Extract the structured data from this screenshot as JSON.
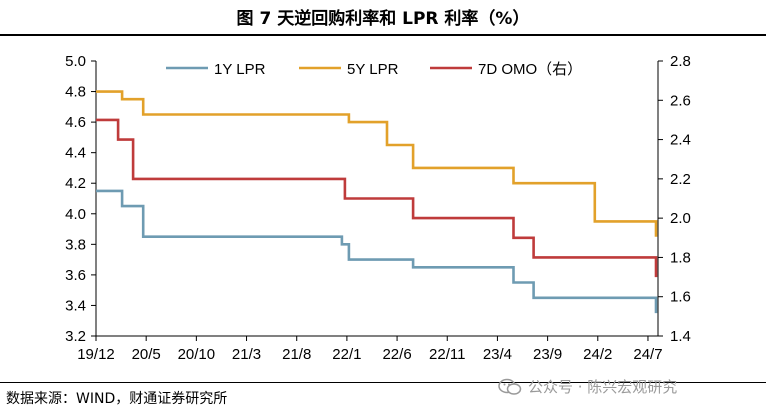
{
  "figure": {
    "title": "图 7 天逆回购利率和 LPR 利率（%）",
    "source": "数据来源：WIND，财通证券研究所",
    "watermark": "公众号 · 陈兴宏观研究",
    "watermark_icon": "wechat-icon"
  },
  "colors": {
    "lpr1y": "#6e9bb2",
    "lpr5y": "#e2a12a",
    "omo7d": "#bf3b3b",
    "axis": "#000000"
  },
  "chart_data": {
    "type": "line",
    "title": "图 7 天逆回购利率和 LPR 利率（%）",
    "x_ticks": [
      "19/12",
      "20/5",
      "20/10",
      "21/3",
      "21/8",
      "22/1",
      "22/6",
      "22/11",
      "23/4",
      "23/9",
      "24/2",
      "24/7"
    ],
    "x_range": [
      0,
      56
    ],
    "x_unit": "months since 2019/12",
    "y_left": {
      "min": 3.2,
      "max": 5.0,
      "step": 0.2,
      "ticks": [
        "3.2",
        "3.4",
        "3.6",
        "3.8",
        "4.0",
        "4.2",
        "4.4",
        "4.6",
        "4.8",
        "5.0"
      ]
    },
    "y_right": {
      "min": 1.4,
      "max": 2.8,
      "step": 0.2,
      "ticks": [
        "1.4",
        "1.6",
        "1.8",
        "2.0",
        "2.2",
        "2.4",
        "2.6",
        "2.8"
      ]
    },
    "legend_position": "top",
    "series": [
      {
        "name": "1Y LPR",
        "axis": "left",
        "color_key": "lpr1y",
        "points": [
          [
            0,
            4.15
          ],
          [
            2.6,
            4.15
          ],
          [
            2.6,
            4.05
          ],
          [
            4.7,
            4.05
          ],
          [
            4.7,
            3.85
          ],
          [
            24.5,
            3.85
          ],
          [
            24.5,
            3.8
          ],
          [
            25.2,
            3.8
          ],
          [
            25.2,
            3.7
          ],
          [
            31.6,
            3.7
          ],
          [
            31.6,
            3.65
          ],
          [
            41.6,
            3.65
          ],
          [
            41.6,
            3.55
          ],
          [
            43.6,
            3.55
          ],
          [
            43.6,
            3.45
          ],
          [
            55.8,
            3.45
          ],
          [
            55.8,
            3.35
          ]
        ]
      },
      {
        "name": "5Y LPR",
        "axis": "left",
        "color_key": "lpr5y",
        "points": [
          [
            0,
            4.8
          ],
          [
            2.6,
            4.8
          ],
          [
            2.6,
            4.75
          ],
          [
            4.7,
            4.75
          ],
          [
            4.7,
            4.65
          ],
          [
            25.2,
            4.65
          ],
          [
            25.2,
            4.6
          ],
          [
            29.0,
            4.6
          ],
          [
            29.0,
            4.45
          ],
          [
            31.6,
            4.45
          ],
          [
            31.6,
            4.3
          ],
          [
            41.6,
            4.3
          ],
          [
            41.6,
            4.2
          ],
          [
            49.7,
            4.2
          ],
          [
            49.7,
            3.95
          ],
          [
            55.8,
            3.95
          ],
          [
            55.8,
            3.85
          ]
        ]
      },
      {
        "name": "7D OMO（右）",
        "axis": "right",
        "color_key": "omo7d",
        "points": [
          [
            0,
            2.5
          ],
          [
            2.2,
            2.5
          ],
          [
            2.2,
            2.4
          ],
          [
            3.7,
            2.4
          ],
          [
            3.7,
            2.2
          ],
          [
            24.8,
            2.2
          ],
          [
            24.8,
            2.1
          ],
          [
            31.6,
            2.1
          ],
          [
            31.6,
            2.0
          ],
          [
            41.6,
            2.0
          ],
          [
            41.6,
            1.9
          ],
          [
            43.6,
            1.9
          ],
          [
            43.6,
            1.8
          ],
          [
            55.8,
            1.8
          ],
          [
            55.8,
            1.7
          ]
        ]
      }
    ]
  }
}
